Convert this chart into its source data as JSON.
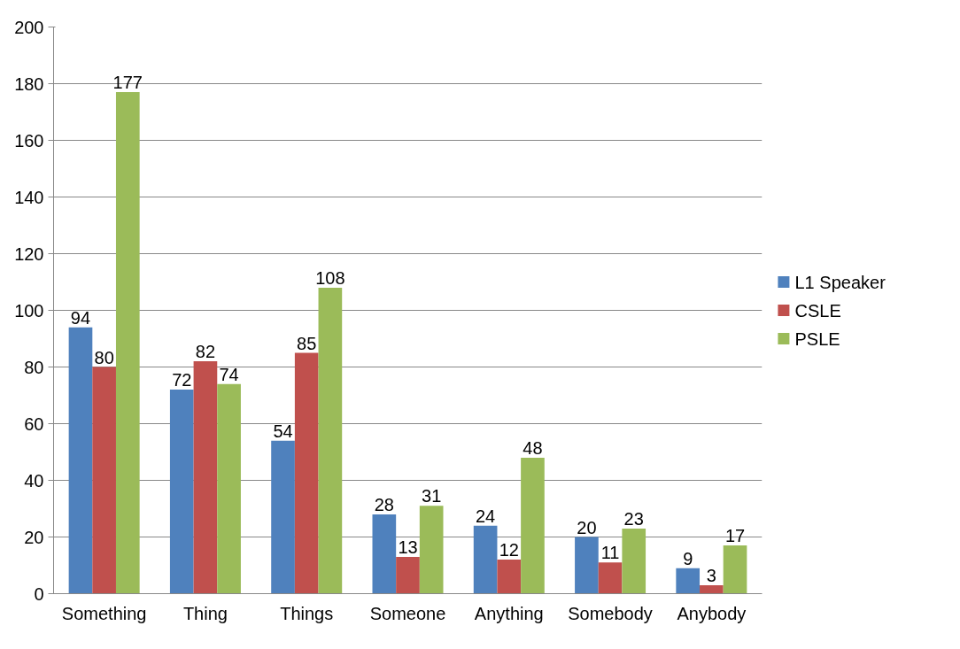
{
  "chart_data": {
    "type": "bar",
    "categories": [
      "Something",
      "Thing",
      "Things",
      "Someone",
      "Anything",
      "Somebody",
      "Anybody"
    ],
    "series": [
      {
        "name": "L1 Speaker",
        "color": "#4f81bd",
        "values": [
          94,
          72,
          54,
          28,
          24,
          20,
          9
        ]
      },
      {
        "name": "CSLE",
        "color": "#c0504d",
        "values": [
          80,
          82,
          85,
          13,
          12,
          11,
          3
        ]
      },
      {
        "name": "PSLE",
        "color": "#9bbb59",
        "values": [
          177,
          74,
          108,
          31,
          48,
          23,
          17
        ]
      }
    ],
    "ylim": [
      0,
      200
    ],
    "yticks": [
      0,
      20,
      40,
      60,
      80,
      100,
      120,
      140,
      160,
      180,
      200
    ],
    "grid": "y",
    "legend": "right",
    "data_labels": true
  }
}
